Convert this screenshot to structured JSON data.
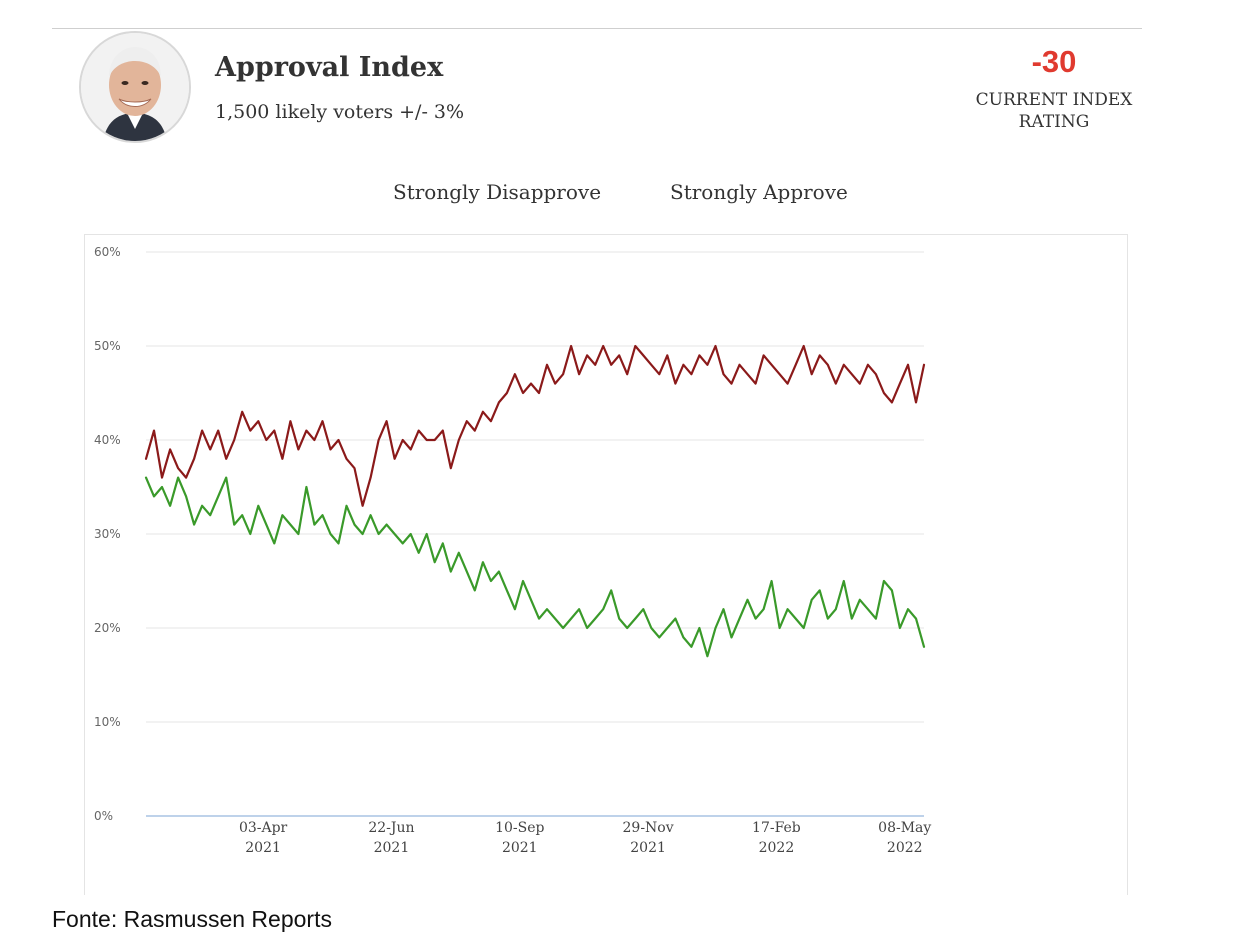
{
  "header": {
    "title": "Approval Index",
    "subtitle": "1,500 likely voters +/- 3%",
    "index_value": "-30",
    "index_label_line1": "CURRENT INDEX",
    "index_label_line2": "RATING"
  },
  "source": "Fonte: Rasmussen Reports",
  "colors": {
    "disapprove": "#8b1a1a",
    "approve": "#3a9a2a",
    "index": "#e03a2f",
    "grid": "#e6e6e6"
  },
  "chart_data": {
    "type": "line",
    "legend": [
      "Strongly Disapprove",
      "Strongly Approve"
    ],
    "legend_placement": "top-center",
    "grid": true,
    "ylim": [
      0,
      60
    ],
    "y_ticks": [
      "0%",
      "10%",
      "20%",
      "30%",
      "40%",
      "50%",
      "60%"
    ],
    "x_range": [
      "2021-01-20",
      "2022-05-20"
    ],
    "x_ticks": [
      {
        "date": "2021-04-03",
        "label": "03-Apr",
        "year": "2021"
      },
      {
        "date": "2021-06-22",
        "label": "22-Jun",
        "year": "2021"
      },
      {
        "date": "2021-09-10",
        "label": "10-Sep",
        "year": "2021"
      },
      {
        "date": "2021-11-29",
        "label": "29-Nov",
        "year": "2021"
      },
      {
        "date": "2022-02-17",
        "label": "17-Feb",
        "year": "2022"
      },
      {
        "date": "2022-05-08",
        "label": "08-May",
        "year": "2022"
      }
    ],
    "series": [
      {
        "name": "Strongly Disapprove",
        "x": [
          "2021-01-20",
          "2021-01-25",
          "2021-01-30",
          "2021-02-04",
          "2021-02-09",
          "2021-02-14",
          "2021-02-19",
          "2021-02-24",
          "2021-03-01",
          "2021-03-06",
          "2021-03-11",
          "2021-03-16",
          "2021-03-21",
          "2021-03-26",
          "2021-03-31",
          "2021-04-05",
          "2021-04-10",
          "2021-04-15",
          "2021-04-20",
          "2021-04-25",
          "2021-04-30",
          "2021-05-05",
          "2021-05-10",
          "2021-05-15",
          "2021-05-20",
          "2021-05-25",
          "2021-05-30",
          "2021-06-04",
          "2021-06-09",
          "2021-06-14",
          "2021-06-19",
          "2021-06-24",
          "2021-06-29",
          "2021-07-04",
          "2021-07-09",
          "2021-07-14",
          "2021-07-19",
          "2021-07-24",
          "2021-07-29",
          "2021-08-03",
          "2021-08-08",
          "2021-08-13",
          "2021-08-18",
          "2021-08-23",
          "2021-08-28",
          "2021-09-02",
          "2021-09-07",
          "2021-09-12",
          "2021-09-17",
          "2021-09-22",
          "2021-09-27",
          "2021-10-02",
          "2021-10-07",
          "2021-10-12",
          "2021-10-17",
          "2021-10-22",
          "2021-10-27",
          "2021-11-01",
          "2021-11-06",
          "2021-11-11",
          "2021-11-16",
          "2021-11-21",
          "2021-11-26",
          "2021-12-01",
          "2021-12-06",
          "2021-12-11",
          "2021-12-16",
          "2021-12-21",
          "2021-12-26",
          "2021-12-31",
          "2022-01-05",
          "2022-01-10",
          "2022-01-15",
          "2022-01-20",
          "2022-01-25",
          "2022-01-30",
          "2022-02-04",
          "2022-02-09",
          "2022-02-14",
          "2022-02-19",
          "2022-02-24",
          "2022-03-01",
          "2022-03-06",
          "2022-03-11",
          "2022-03-16",
          "2022-03-21",
          "2022-03-26",
          "2022-03-31",
          "2022-04-05",
          "2022-04-10",
          "2022-04-15",
          "2022-04-20",
          "2022-04-25",
          "2022-04-30",
          "2022-05-05",
          "2022-05-10",
          "2022-05-15",
          "2022-05-20"
        ],
        "values": [
          38,
          41,
          36,
          39,
          37,
          36,
          38,
          41,
          39,
          41,
          38,
          40,
          43,
          41,
          42,
          40,
          41,
          38,
          42,
          39,
          41,
          40,
          42,
          39,
          40,
          38,
          37,
          33,
          36,
          40,
          42,
          38,
          40,
          39,
          41,
          40,
          40,
          41,
          37,
          40,
          42,
          41,
          43,
          42,
          44,
          45,
          47,
          45,
          46,
          45,
          48,
          46,
          47,
          50,
          47,
          49,
          48,
          50,
          48,
          49,
          47,
          50,
          49,
          48,
          47,
          49,
          46,
          48,
          47,
          49,
          48,
          50,
          47,
          46,
          48,
          47,
          46,
          49,
          48,
          47,
          46,
          48,
          50,
          47,
          49,
          48,
          46,
          48,
          47,
          46,
          48,
          47,
          45,
          44,
          46,
          48,
          44,
          48
        ]
      },
      {
        "name": "Strongly Approve",
        "x": [
          "2021-01-20",
          "2021-01-25",
          "2021-01-30",
          "2021-02-04",
          "2021-02-09",
          "2021-02-14",
          "2021-02-19",
          "2021-02-24",
          "2021-03-01",
          "2021-03-06",
          "2021-03-11",
          "2021-03-16",
          "2021-03-21",
          "2021-03-26",
          "2021-03-31",
          "2021-04-05",
          "2021-04-10",
          "2021-04-15",
          "2021-04-20",
          "2021-04-25",
          "2021-04-30",
          "2021-05-05",
          "2021-05-10",
          "2021-05-15",
          "2021-05-20",
          "2021-05-25",
          "2021-05-30",
          "2021-06-04",
          "2021-06-09",
          "2021-06-14",
          "2021-06-19",
          "2021-06-24",
          "2021-06-29",
          "2021-07-04",
          "2021-07-09",
          "2021-07-14",
          "2021-07-19",
          "2021-07-24",
          "2021-07-29",
          "2021-08-03",
          "2021-08-08",
          "2021-08-13",
          "2021-08-18",
          "2021-08-23",
          "2021-08-28",
          "2021-09-02",
          "2021-09-07",
          "2021-09-12",
          "2021-09-17",
          "2021-09-22",
          "2021-09-27",
          "2021-10-02",
          "2021-10-07",
          "2021-10-12",
          "2021-10-17",
          "2021-10-22",
          "2021-10-27",
          "2021-11-01",
          "2021-11-06",
          "2021-11-11",
          "2021-11-16",
          "2021-11-21",
          "2021-11-26",
          "2021-12-01",
          "2021-12-06",
          "2021-12-11",
          "2021-12-16",
          "2021-12-21",
          "2021-12-26",
          "2021-12-31",
          "2022-01-05",
          "2022-01-10",
          "2022-01-15",
          "2022-01-20",
          "2022-01-25",
          "2022-01-30",
          "2022-02-04",
          "2022-02-09",
          "2022-02-14",
          "2022-02-19",
          "2022-02-24",
          "2022-03-01",
          "2022-03-06",
          "2022-03-11",
          "2022-03-16",
          "2022-03-21",
          "2022-03-26",
          "2022-03-31",
          "2022-04-05",
          "2022-04-10",
          "2022-04-15",
          "2022-04-20",
          "2022-04-25",
          "2022-04-30",
          "2022-05-05",
          "2022-05-10",
          "2022-05-15",
          "2022-05-20"
        ],
        "values": [
          36,
          34,
          35,
          33,
          36,
          34,
          31,
          33,
          32,
          34,
          36,
          31,
          32,
          30,
          33,
          31,
          29,
          32,
          31,
          30,
          35,
          31,
          32,
          30,
          29,
          33,
          31,
          30,
          32,
          30,
          31,
          30,
          29,
          30,
          28,
          30,
          27,
          29,
          26,
          28,
          26,
          24,
          27,
          25,
          26,
          24,
          22,
          25,
          23,
          21,
          22,
          21,
          20,
          21,
          22,
          20,
          21,
          22,
          24,
          21,
          20,
          21,
          22,
          20,
          19,
          20,
          21,
          19,
          18,
          20,
          17,
          20,
          22,
          19,
          21,
          23,
          21,
          22,
          25,
          20,
          22,
          21,
          20,
          23,
          24,
          21,
          22,
          25,
          21,
          23,
          22,
          21,
          25,
          24,
          20,
          22,
          21,
          18
        ]
      }
    ]
  }
}
